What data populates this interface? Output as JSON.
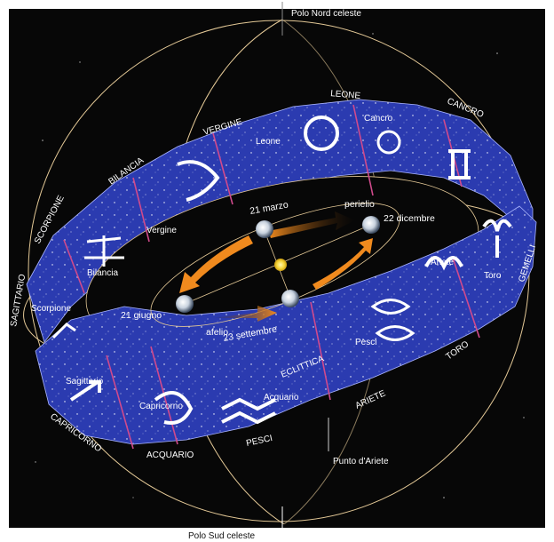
{
  "poles": {
    "north": "Polo Nord celeste",
    "south": "Polo Sud celeste"
  },
  "ring_labels": {
    "leone": "LEONE",
    "cancro": "CANCRO",
    "vergine": "VERGINE",
    "bilancia": "BILANCIA",
    "scorpione": "SCORPIONE",
    "sagittario": "SAGITTARIO",
    "capricorno": "CAPRICORNO",
    "acquario": "ACQUARIO",
    "pesci": "PESCI",
    "ariete": "ARIETE",
    "toro": "TORO",
    "gemelli": "GEMELLI",
    "eclittica": "ECLITTICA"
  },
  "constellations": {
    "leone": "Leone",
    "cancro": "Cancro",
    "vergine": "Vergine",
    "bilancia": "Bilancia",
    "scorpione": "Scorpione",
    "sagittario": "Sagittario",
    "capricorno": "Capricorno",
    "acquario": "Acquario",
    "pesci": "Pesci",
    "ariete": "Ariete",
    "toro": "Toro"
  },
  "orbit": {
    "march": "21 marzo",
    "perihelion": "perielio",
    "december": "22 dicembre",
    "june": "21 giugno",
    "aphelion": "afelio",
    "september": "23 settembre"
  },
  "point": "Punto d'Ariete",
  "colors": {
    "background": "#070707",
    "band": "#2b3bb0",
    "band_light": "#3a4fd0",
    "boundary": "#d04a8c",
    "ring": "#e3c896",
    "arrow": "#f08a1e",
    "sun": "#f6d63a"
  }
}
